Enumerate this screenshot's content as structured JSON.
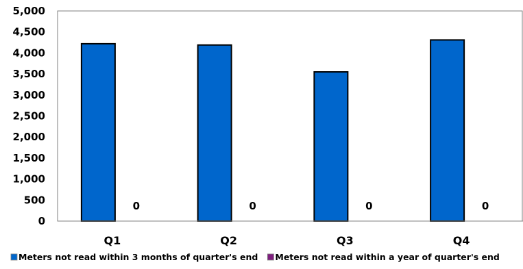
{
  "chart_data": {
    "type": "bar",
    "title": "",
    "xlabel": "",
    "ylabel": "",
    "categories": [
      "Q1",
      "Q2",
      "Q3",
      "Q4"
    ],
    "series": [
      {
        "name": "Meters not read within 3 months of quarter's end",
        "color": "#0066CC",
        "values": [
          4220,
          4190,
          3550,
          4310
        ]
      },
      {
        "name": "Meters not read within a year of quarter's end",
        "color": "#7F1F7F",
        "values": [
          0,
          0,
          0,
          0
        ],
        "data_labels": [
          "0",
          "0",
          "0",
          "0"
        ]
      }
    ],
    "ylim": [
      0,
      5000
    ],
    "yticks": [
      "0",
      "500",
      "1,000",
      "1,500",
      "2,000",
      "2,500",
      "3,000",
      "3,500",
      "4,000",
      "4,500",
      "5,000"
    ],
    "grid": false,
    "legend_position": "bottom"
  }
}
